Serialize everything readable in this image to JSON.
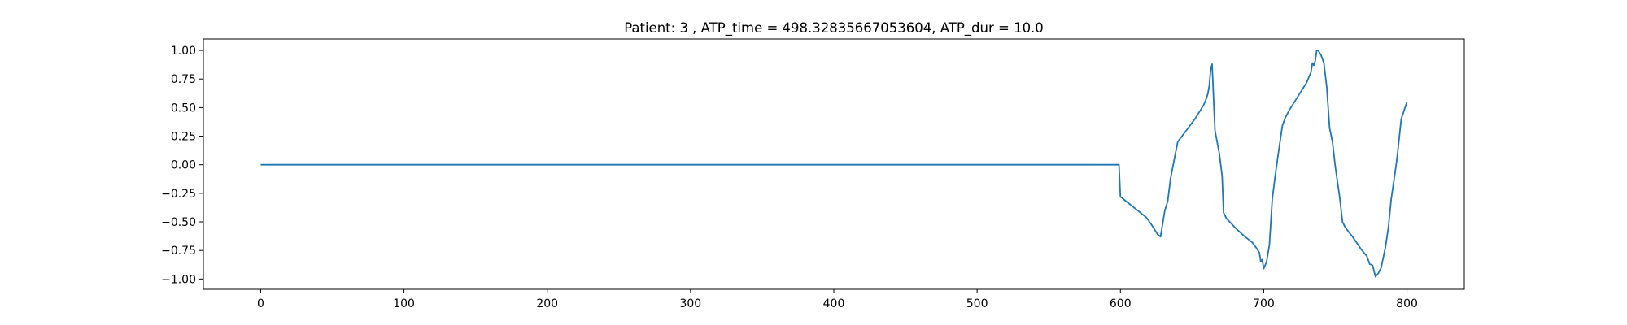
{
  "chart_data": {
    "type": "line",
    "title": "Patient: 3 , ATP_time = 498.32835667053604, ATP_dur = 10.0",
    "xlabel": "",
    "ylabel": "",
    "xlim": [
      -40,
      840
    ],
    "ylim": [
      -1.09,
      1.1
    ],
    "x_ticks": [
      0,
      100,
      200,
      300,
      400,
      500,
      600,
      700,
      800
    ],
    "x_tick_labels": [
      "0",
      "100",
      "200",
      "300",
      "400",
      "500",
      "600",
      "700",
      "800"
    ],
    "y_ticks": [
      -1.0,
      -0.75,
      -0.5,
      -0.25,
      0.0,
      0.25,
      0.5,
      0.75,
      1.0
    ],
    "y_tick_labels": [
      "−1.00",
      "−0.75",
      "−0.50",
      "−0.25",
      "0.00",
      "0.25",
      "0.50",
      "0.75",
      "1.00"
    ],
    "grid": false,
    "legend": "none",
    "color": "#1f77b4",
    "series": [
      {
        "x": [
          0,
          100,
          200,
          300,
          400,
          500,
          598,
          599,
          600,
          605,
          612,
          618,
          622,
          624,
          626,
          628,
          631,
          633,
          635,
          640,
          646,
          652,
          656,
          658,
          660,
          661,
          662,
          663,
          664,
          666,
          669,
          671,
          672,
          674,
          680,
          686,
          692,
          695,
          697,
          698,
          699,
          700,
          702,
          704,
          706,
          708,
          710,
          713,
          715,
          718,
          724,
          730,
          733,
          734,
          735,
          736,
          737,
          738,
          740,
          742,
          744,
          746,
          748,
          749,
          750,
          753,
          755,
          757,
          762,
          768,
          772,
          774,
          776,
          777,
          778,
          780,
          782,
          785,
          787,
          789,
          791,
          793,
          796,
          800
        ],
        "y": [
          0,
          0,
          0,
          0,
          0,
          0,
          0,
          0,
          -0.28,
          -0.33,
          -0.4,
          -0.46,
          -0.53,
          -0.57,
          -0.61,
          -0.63,
          -0.4,
          -0.32,
          -0.12,
          0.2,
          0.3,
          0.4,
          0.48,
          0.52,
          0.58,
          0.62,
          0.69,
          0.83,
          0.88,
          0.3,
          0.1,
          -0.1,
          -0.42,
          -0.47,
          -0.55,
          -0.62,
          -0.68,
          -0.73,
          -0.77,
          -0.85,
          -0.83,
          -0.91,
          -0.85,
          -0.7,
          -0.3,
          -0.1,
          0.08,
          0.34,
          0.41,
          0.48,
          0.6,
          0.72,
          0.81,
          0.89,
          0.87,
          0.91,
          1.0,
          1.0,
          0.96,
          0.89,
          0.68,
          0.32,
          0.2,
          0.09,
          -0.02,
          -0.28,
          -0.5,
          -0.55,
          -0.63,
          -0.74,
          -0.8,
          -0.87,
          -0.88,
          -0.93,
          -0.98,
          -0.95,
          -0.9,
          -0.72,
          -0.55,
          -0.3,
          -0.13,
          0.05,
          0.4,
          0.55
        ]
      }
    ]
  }
}
